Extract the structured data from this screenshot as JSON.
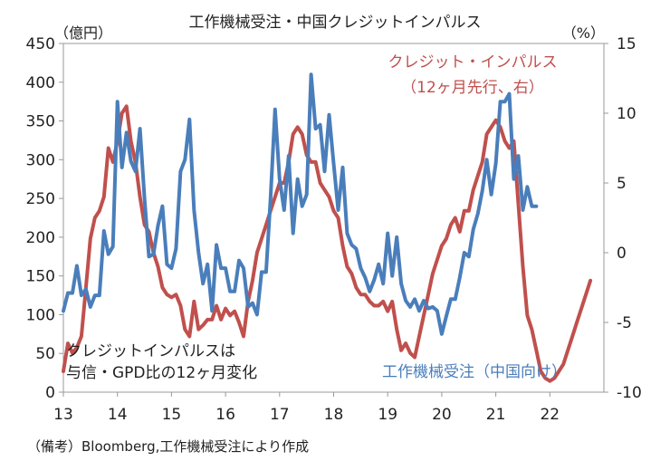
{
  "chart_data": {
    "type": "line",
    "title": "工作機械受注・中国クレジットインパルス",
    "left_axis": {
      "unit_label": "（億円）",
      "range": [
        0,
        450
      ],
      "ticks": [
        0,
        50,
        100,
        150,
        200,
        250,
        300,
        350,
        400,
        450
      ]
    },
    "right_axis": {
      "unit_label": "（%）",
      "range": [
        -10,
        15
      ],
      "ticks": [
        -10,
        -5,
        0,
        5,
        10,
        15
      ]
    },
    "x_axis": {
      "range": [
        2013.0,
        2023.0
      ],
      "tick_labels": [
        "13",
        "14",
        "15",
        "16",
        "17",
        "18",
        "19",
        "20",
        "21",
        "22"
      ]
    },
    "series": [
      {
        "name": "工作機械受注（中国向け）",
        "axis": "left",
        "color": "#4a7ebb",
        "x": [
          2013.0,
          2013.083,
          2013.167,
          2013.25,
          2013.333,
          2013.417,
          2013.5,
          2013.583,
          2013.667,
          2013.75,
          2013.833,
          2013.917,
          2014.0,
          2014.083,
          2014.167,
          2014.25,
          2014.333,
          2014.417,
          2014.5,
          2014.583,
          2014.667,
          2014.75,
          2014.833,
          2014.917,
          2015.0,
          2015.083,
          2015.167,
          2015.25,
          2015.333,
          2015.417,
          2015.5,
          2015.583,
          2015.667,
          2015.75,
          2015.833,
          2015.917,
          2016.0,
          2016.083,
          2016.167,
          2016.25,
          2016.333,
          2016.417,
          2016.5,
          2016.583,
          2016.667,
          2016.75,
          2016.833,
          2016.917,
          2017.0,
          2017.083,
          2017.167,
          2017.25,
          2017.333,
          2017.417,
          2017.5,
          2017.583,
          2017.667,
          2017.75,
          2017.833,
          2017.917,
          2018.0,
          2018.083,
          2018.167,
          2018.25,
          2018.333,
          2018.417,
          2018.5,
          2018.583,
          2018.667,
          2018.75,
          2018.833,
          2018.917,
          2019.0,
          2019.083,
          2019.167,
          2019.25,
          2019.333,
          2019.417,
          2019.5,
          2019.583,
          2019.667,
          2019.75,
          2019.833,
          2019.917,
          2020.0,
          2020.083,
          2020.167,
          2020.25,
          2020.333,
          2020.417,
          2020.5,
          2020.583,
          2020.667,
          2020.75,
          2020.833,
          2020.917,
          2021.0,
          2021.083,
          2021.167,
          2021.25,
          2021.333,
          2021.417,
          2021.5,
          2021.583,
          2021.667,
          2021.75
        ],
        "values": [
          105,
          128,
          128,
          163,
          125,
          133,
          110,
          125,
          125,
          208,
          178,
          188,
          375,
          290,
          335,
          298,
          285,
          340,
          250,
          175,
          178,
          215,
          240,
          165,
          160,
          185,
          285,
          300,
          352,
          235,
          180,
          140,
          165,
          105,
          190,
          160,
          160,
          130,
          130,
          170,
          160,
          110,
          115,
          100,
          155,
          155,
          250,
          365,
          275,
          235,
          305,
          205,
          275,
          240,
          255,
          410,
          340,
          345,
          285,
          358,
          295,
          235,
          290,
          205,
          190,
          185,
          160,
          148,
          130,
          145,
          165,
          140,
          205,
          150,
          200,
          140,
          118,
          110,
          120,
          105,
          118,
          108,
          110,
          105,
          75,
          98,
          120,
          120,
          148,
          180,
          175,
          210,
          230,
          260,
          300,
          255,
          295,
          375,
          375,
          385,
          275,
          305,
          235,
          265,
          240,
          240
        ]
      },
      {
        "name": "クレジット・インパルス",
        "name_sub": "（12ヶ月先行、右）",
        "axis": "right",
        "color": "#c0504d",
        "x": [
          2013.0,
          2013.083,
          2013.167,
          2013.25,
          2013.333,
          2013.417,
          2013.5,
          2013.583,
          2013.667,
          2013.75,
          2013.833,
          2013.917,
          2014.0,
          2014.083,
          2014.167,
          2014.25,
          2014.333,
          2014.417,
          2014.5,
          2014.583,
          2014.667,
          2014.75,
          2014.833,
          2014.917,
          2015.0,
          2015.083,
          2015.167,
          2015.25,
          2015.333,
          2015.417,
          2015.5,
          2015.583,
          2015.667,
          2015.75,
          2015.833,
          2015.917,
          2016.0,
          2016.083,
          2016.167,
          2016.25,
          2016.333,
          2016.417,
          2016.5,
          2016.583,
          2016.667,
          2016.75,
          2016.833,
          2016.917,
          2017.0,
          2017.083,
          2017.167,
          2017.25,
          2017.333,
          2017.417,
          2017.5,
          2017.583,
          2017.667,
          2017.75,
          2017.833,
          2017.917,
          2018.0,
          2018.083,
          2018.167,
          2018.25,
          2018.333,
          2018.417,
          2018.5,
          2018.583,
          2018.667,
          2018.75,
          2018.833,
          2018.917,
          2019.0,
          2019.083,
          2019.167,
          2019.25,
          2019.333,
          2019.417,
          2019.5,
          2019.583,
          2019.667,
          2019.75,
          2019.833,
          2019.917,
          2020.0,
          2020.083,
          2020.167,
          2020.25,
          2020.333,
          2020.417,
          2020.5,
          2020.583,
          2020.667,
          2020.75,
          2020.833,
          2020.917,
          2021.0,
          2021.083,
          2021.167,
          2021.25,
          2021.333,
          2021.417,
          2021.5,
          2021.583,
          2021.667,
          2021.75,
          2021.833,
          2021.917,
          2022.0,
          2022.083,
          2022.167,
          2022.25,
          2022.333,
          2022.417,
          2022.5,
          2022.583,
          2022.667,
          2022.75
        ],
        "values": [
          -8.5,
          -6.5,
          -7.2,
          -6.8,
          -6.0,
          -2.5,
          1.0,
          2.5,
          3.0,
          4.0,
          7.5,
          6.5,
          8.0,
          10.0,
          10.5,
          8.0,
          6.5,
          4.0,
          2.0,
          1.5,
          0.0,
          -1.0,
          -2.5,
          -3.0,
          -3.2,
          -3.0,
          -3.8,
          -5.5,
          -6.0,
          -3.5,
          -5.5,
          -5.2,
          -4.8,
          -4.8,
          -3.8,
          -4.8,
          -4.0,
          -4.5,
          -4.2,
          -5.0,
          -6.0,
          -3.5,
          -2.0,
          0.0,
          1.0,
          2.0,
          3.0,
          4.0,
          5.0,
          5.0,
          6.5,
          8.5,
          9.0,
          8.5,
          7.0,
          6.5,
          6.5,
          5.0,
          4.5,
          4.0,
          3.0,
          2.5,
          0.5,
          -1.0,
          -1.5,
          -2.5,
          -3.0,
          -3.0,
          -3.5,
          -3.8,
          -3.8,
          -3.5,
          -4.2,
          -3.5,
          -5.5,
          -7.0,
          -6.5,
          -7.2,
          -7.5,
          -6.0,
          -4.5,
          -3.0,
          -1.5,
          -0.5,
          0.5,
          1.0,
          2.0,
          2.5,
          1.5,
          3.0,
          3.0,
          4.5,
          5.5,
          6.5,
          8.5,
          9.0,
          9.5,
          9.0,
          8.0,
          7.5,
          8.0,
          3.5,
          -1.0,
          -4.5,
          -5.5,
          -7.0,
          -8.5,
          -9.0,
          -9.2,
          -9.0,
          -8.5,
          -8.0,
          -7.0,
          -6.0,
          -5.0,
          -4.0,
          -3.0,
          -2.0
        ]
      }
    ],
    "annotations": {
      "left_note_line1": "クレジットインパルスは",
      "left_note_line2": "与信・GPD比の12ヶ月変化",
      "caption": "（備考）Bloomberg,工作機械受注により作成"
    }
  }
}
